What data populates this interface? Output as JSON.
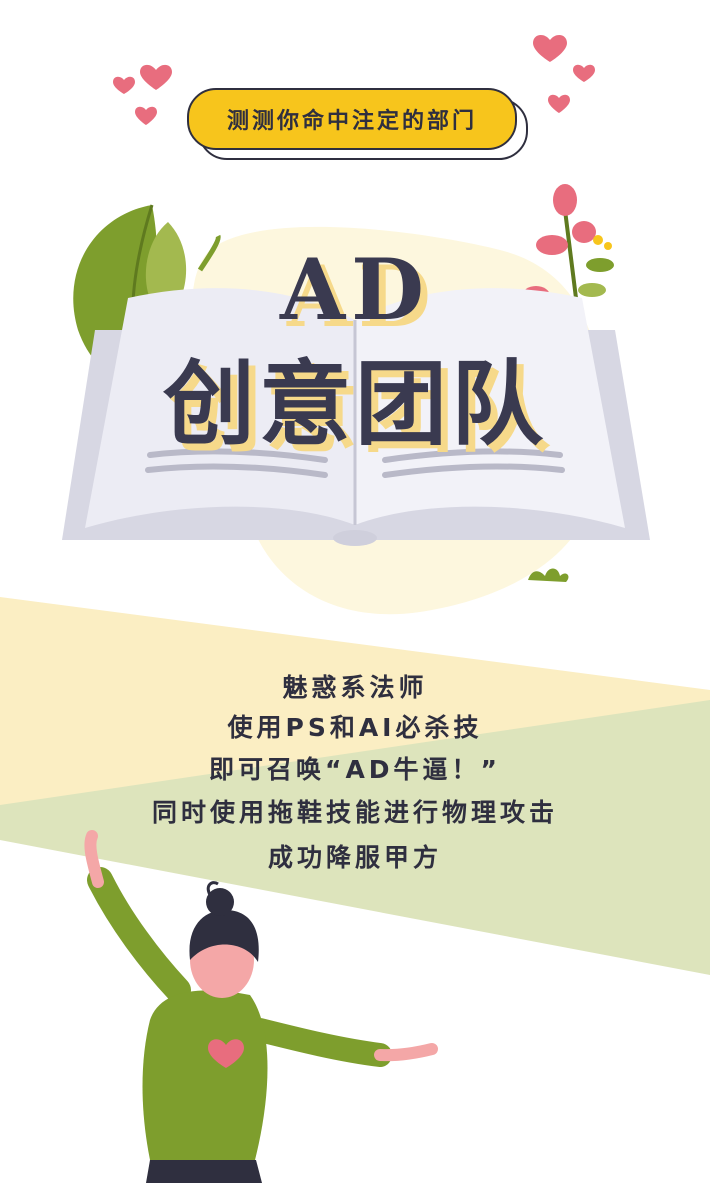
{
  "header": {
    "tag": "测测你命中注定的部门"
  },
  "title": {
    "en": "AD",
    "cn": "创意团队"
  },
  "description": {
    "lines": [
      "魅惑系法师",
      "使用PS和AI必杀技",
      "即可召唤“AD牛逼！”",
      "同时使用拖鞋技能进行物理攻击",
      "成功降服甲方"
    ]
  },
  "colors": {
    "accent_yellow": "#f7c51c",
    "title_color": "#3a3a50",
    "title_shadow": "#f6d98a",
    "leaf_green": "#7e9e2d",
    "heart_pink": "#e86d7e",
    "stripe_yellow": "#fbeec3",
    "stripe_green": "#dde4bc"
  }
}
